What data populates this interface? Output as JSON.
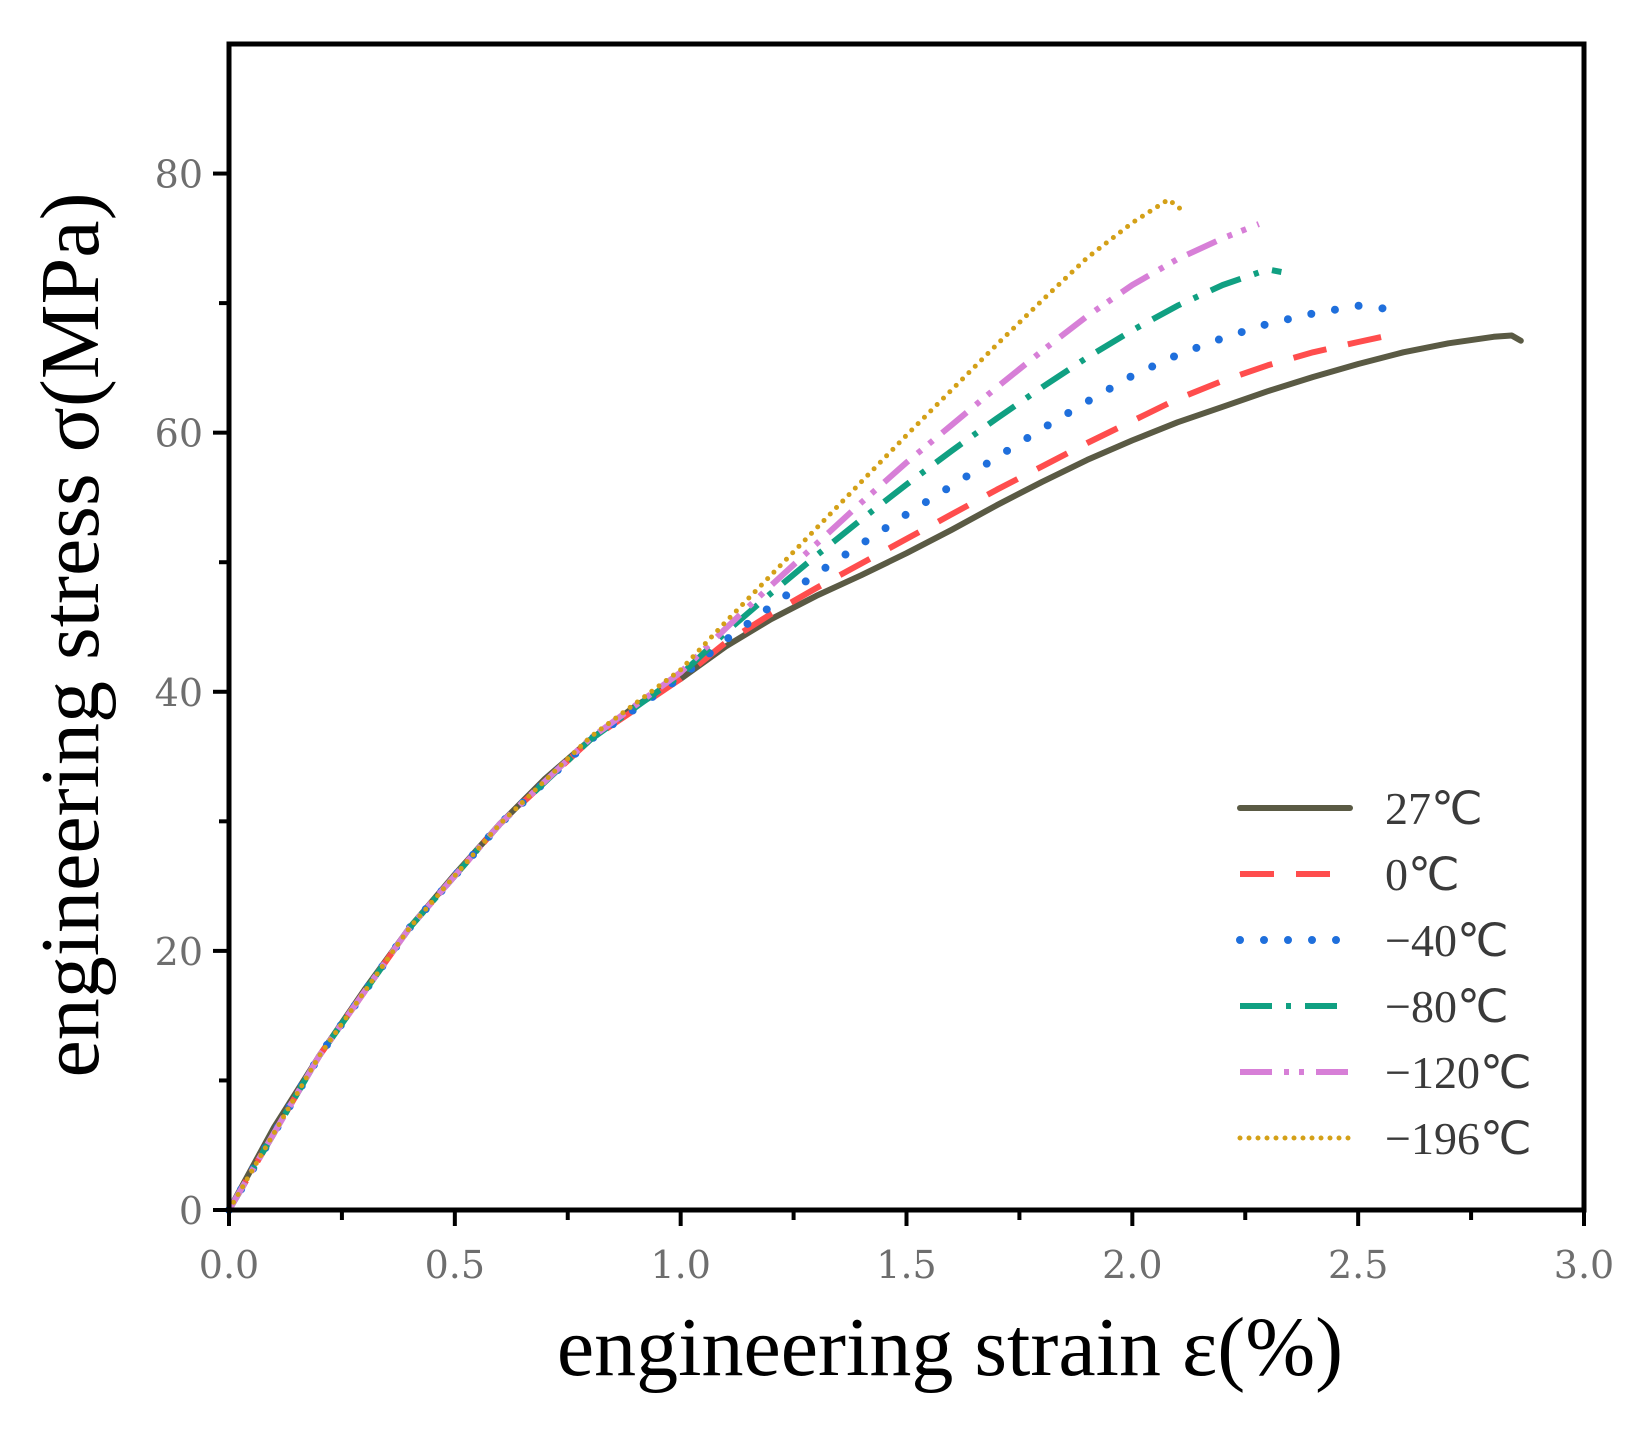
{
  "chart_data": {
    "type": "line",
    "title": "",
    "xlabel": "engineering strain ε(%)",
    "ylabel": "engineering stress σ(MPa)",
    "xlim": [
      0,
      3
    ],
    "ylim": [
      0,
      90
    ],
    "x_ticks": [
      0,
      0.5,
      1.0,
      1.5,
      2.0,
      2.5,
      3.0
    ],
    "x_tick_labels": [
      "0.0",
      "0.5",
      "1.0",
      "1.5",
      "2.0",
      "2.5",
      "3.0"
    ],
    "y_ticks": [
      0,
      20,
      40,
      60,
      80
    ],
    "y_tick_labels": [
      "0",
      "20",
      "40",
      "60",
      "80"
    ],
    "grid": false,
    "legend_position": "bottom-right",
    "series": [
      {
        "name": "27℃",
        "color": "#5a5a44",
        "style": "solid",
        "points": [
          [
            0,
            0
          ],
          [
            0.1,
            6.4
          ],
          [
            0.2,
            11.9
          ],
          [
            0.3,
            17.0
          ],
          [
            0.4,
            21.8
          ],
          [
            0.5,
            25.9
          ],
          [
            0.6,
            29.8
          ],
          [
            0.7,
            33.3
          ],
          [
            0.8,
            36.3
          ],
          [
            0.9,
            38.9
          ],
          [
            1.0,
            41.0
          ],
          [
            1.1,
            43.5
          ],
          [
            1.2,
            45.6
          ],
          [
            1.3,
            47.4
          ],
          [
            1.4,
            49.0
          ],
          [
            1.5,
            50.7
          ],
          [
            1.6,
            52.5
          ],
          [
            1.7,
            54.4
          ],
          [
            1.8,
            56.2
          ],
          [
            1.9,
            57.9
          ],
          [
            2.0,
            59.4
          ],
          [
            2.1,
            60.8
          ],
          [
            2.2,
            62.0
          ],
          [
            2.3,
            63.2
          ],
          [
            2.4,
            64.3
          ],
          [
            2.5,
            65.3
          ],
          [
            2.6,
            66.2
          ],
          [
            2.7,
            66.9
          ],
          [
            2.8,
            67.4
          ],
          [
            2.84,
            67.5
          ],
          [
            2.86,
            67.1
          ]
        ]
      },
      {
        "name": "0℃",
        "color": "#ff4d4d",
        "style": "dashed",
        "points": [
          [
            0,
            0
          ],
          [
            0.2,
            11.9
          ],
          [
            0.4,
            21.8
          ],
          [
            0.6,
            29.8
          ],
          [
            0.8,
            36.3
          ],
          [
            1.0,
            41.0
          ],
          [
            1.1,
            43.8
          ],
          [
            1.2,
            46.0
          ],
          [
            1.3,
            48.0
          ],
          [
            1.4,
            49.9
          ],
          [
            1.5,
            51.8
          ],
          [
            1.6,
            53.7
          ],
          [
            1.7,
            55.6
          ],
          [
            1.8,
            57.4
          ],
          [
            1.9,
            59.2
          ],
          [
            2.0,
            60.9
          ],
          [
            2.1,
            62.6
          ],
          [
            2.2,
            64.0
          ],
          [
            2.3,
            65.2
          ],
          [
            2.4,
            66.2
          ],
          [
            2.5,
            67.0
          ],
          [
            2.58,
            67.6
          ]
        ]
      },
      {
        "name": "−40℃",
        "color": "#1f6fdc",
        "style": "dotted",
        "points": [
          [
            0,
            0
          ],
          [
            0.2,
            11.9
          ],
          [
            0.4,
            21.8
          ],
          [
            0.6,
            29.8
          ],
          [
            0.8,
            36.3
          ],
          [
            1.0,
            41.1
          ],
          [
            1.1,
            44.0
          ],
          [
            1.2,
            46.6
          ],
          [
            1.3,
            49.1
          ],
          [
            1.4,
            51.4
          ],
          [
            1.5,
            53.7
          ],
          [
            1.6,
            55.9
          ],
          [
            1.7,
            58.1
          ],
          [
            1.8,
            60.3
          ],
          [
            1.9,
            62.4
          ],
          [
            2.0,
            64.4
          ],
          [
            2.1,
            66.0
          ],
          [
            2.2,
            67.3
          ],
          [
            2.3,
            68.4
          ],
          [
            2.4,
            69.2
          ],
          [
            2.5,
            69.8
          ],
          [
            2.58,
            69.5
          ]
        ]
      },
      {
        "name": "−80℃",
        "color": "#10a082",
        "style": "dashdot",
        "points": [
          [
            0,
            0
          ],
          [
            0.2,
            11.9
          ],
          [
            0.4,
            21.8
          ],
          [
            0.6,
            29.8
          ],
          [
            0.8,
            36.3
          ],
          [
            1.0,
            41.3
          ],
          [
            1.1,
            44.6
          ],
          [
            1.2,
            47.6
          ],
          [
            1.3,
            50.5
          ],
          [
            1.4,
            53.3
          ],
          [
            1.5,
            56.0
          ],
          [
            1.6,
            58.6
          ],
          [
            1.7,
            61.1
          ],
          [
            1.8,
            63.5
          ],
          [
            1.9,
            65.8
          ],
          [
            2.0,
            67.9
          ],
          [
            2.1,
            69.8
          ],
          [
            2.2,
            71.4
          ],
          [
            2.3,
            72.6
          ],
          [
            2.33,
            72.4
          ]
        ]
      },
      {
        "name": "−120℃",
        "color": "#d77fd7",
        "style": "dashdotdot",
        "points": [
          [
            0,
            0
          ],
          [
            0.2,
            11.9
          ],
          [
            0.4,
            21.8
          ],
          [
            0.6,
            29.8
          ],
          [
            0.8,
            36.4
          ],
          [
            1.0,
            41.5
          ],
          [
            1.1,
            44.9
          ],
          [
            1.2,
            48.2
          ],
          [
            1.3,
            51.4
          ],
          [
            1.4,
            54.6
          ],
          [
            1.5,
            57.7
          ],
          [
            1.6,
            60.6
          ],
          [
            1.7,
            63.5
          ],
          [
            1.8,
            66.3
          ],
          [
            1.9,
            69.0
          ],
          [
            2.0,
            71.4
          ],
          [
            2.1,
            73.4
          ],
          [
            2.2,
            75.0
          ],
          [
            2.28,
            76.1
          ]
        ]
      },
      {
        "name": "−196℃",
        "color": "#d4a017",
        "style": "finedotted",
        "points": [
          [
            0,
            0
          ],
          [
            0.2,
            11.9
          ],
          [
            0.4,
            21.8
          ],
          [
            0.6,
            29.8
          ],
          [
            0.8,
            36.5
          ],
          [
            1.0,
            41.7
          ],
          [
            1.1,
            45.4
          ],
          [
            1.2,
            49.0
          ],
          [
            1.3,
            52.6
          ],
          [
            1.4,
            56.2
          ],
          [
            1.5,
            59.8
          ],
          [
            1.6,
            63.3
          ],
          [
            1.7,
            66.8
          ],
          [
            1.8,
            70.2
          ],
          [
            1.9,
            73.5
          ],
          [
            2.0,
            76.2
          ],
          [
            2.08,
            78.0
          ],
          [
            2.12,
            76.9
          ]
        ]
      }
    ]
  }
}
